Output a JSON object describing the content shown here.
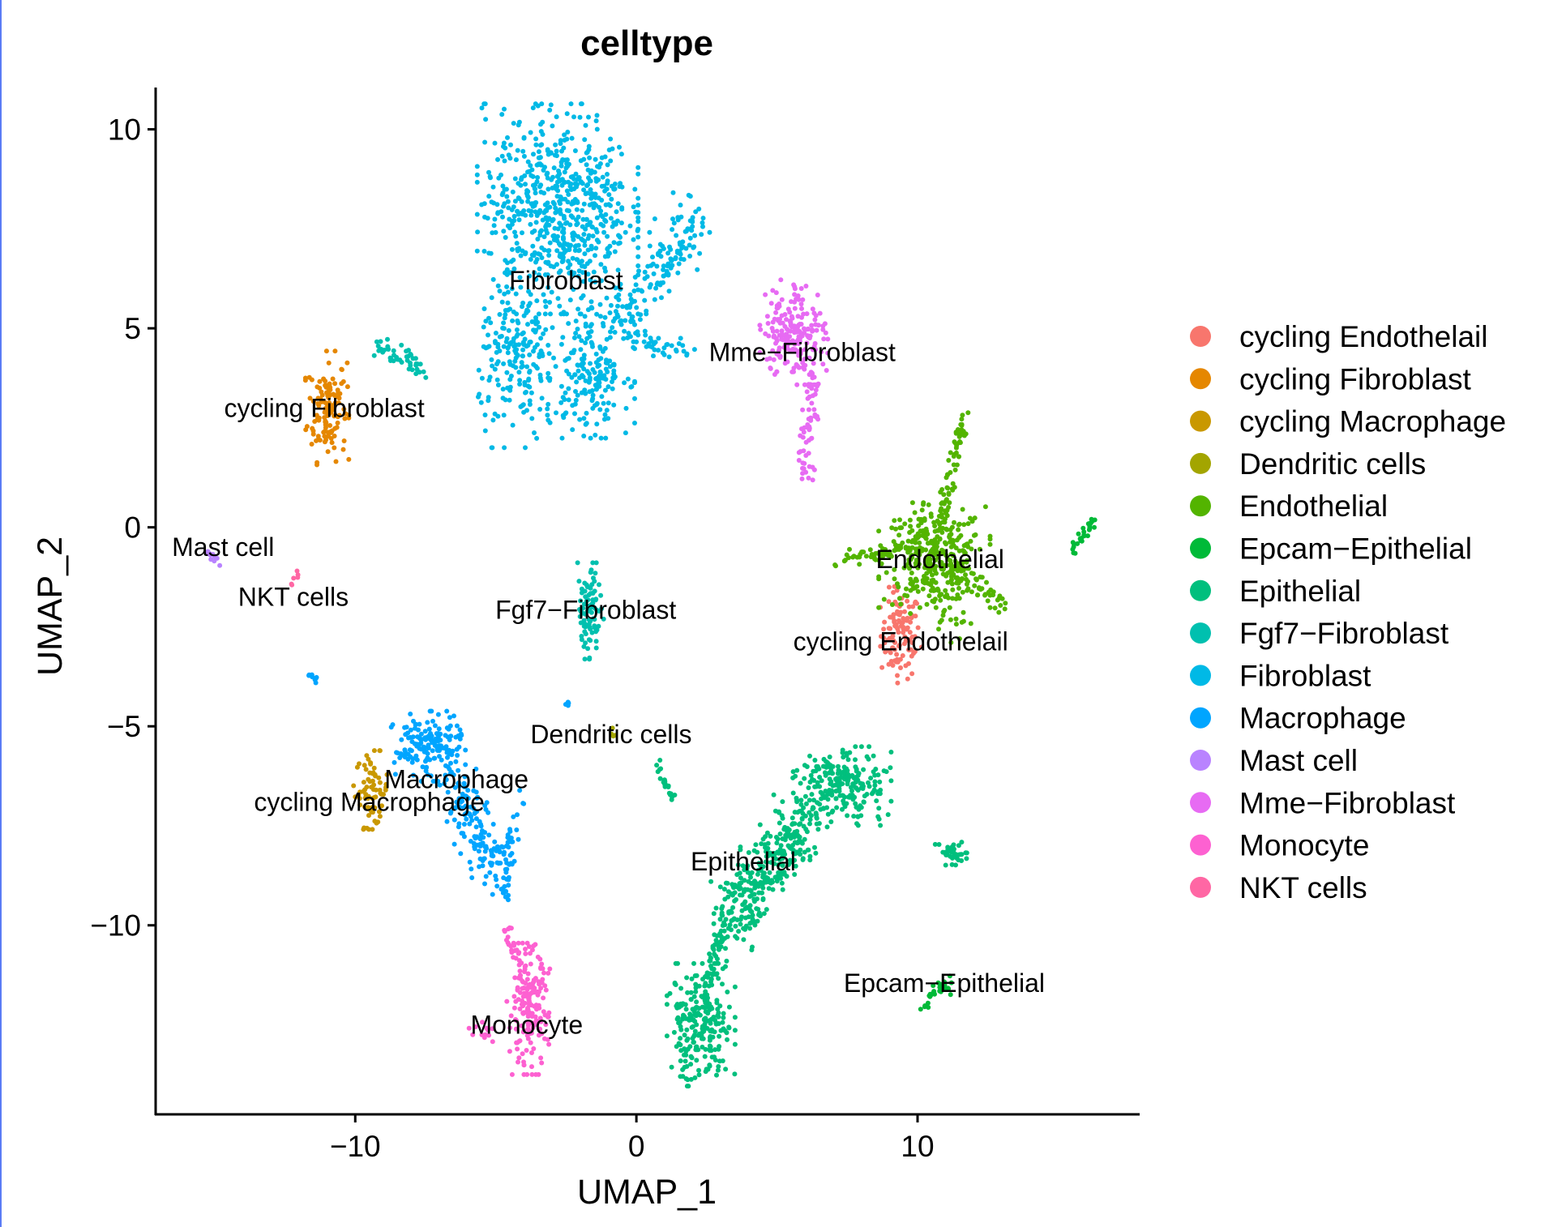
{
  "chart_data": {
    "type": "scatter",
    "title": "celltype",
    "xlabel": "UMAP_1",
    "ylabel": "UMAP_2",
    "xlim": [
      -17.1,
      17.9
    ],
    "ylim": [
      -14.75,
      11.05
    ],
    "xticks": [
      {
        "value": -10,
        "label": "−10"
      },
      {
        "value": 0,
        "label": "0"
      },
      {
        "value": 10,
        "label": "10"
      }
    ],
    "yticks": [
      {
        "value": 10,
        "label": "10"
      },
      {
        "value": 5,
        "label": "5"
      },
      {
        "value": 0,
        "label": "0"
      },
      {
        "value": -5,
        "label": "−5"
      },
      {
        "value": -10,
        "label": "−10"
      }
    ],
    "grid": false,
    "legend_placement": "right",
    "series": [
      {
        "name": "cycling Endothelail",
        "color": "#F8766D",
        "label_pos": [
          9.4,
          -2.87
        ],
        "clusters": [
          {
            "kind": "blob",
            "c": [
              9.4,
              -2.7
            ],
            "s": [
              0.35,
              0.55
            ],
            "n": 110
          }
        ]
      },
      {
        "name": "cycling Fibroblast",
        "color": "#E58700",
        "label_pos": [
          -11.1,
          3.0
        ],
        "clusters": [
          {
            "kind": "blob",
            "c": [
              -11.0,
              3.0
            ],
            "s": [
              0.35,
              0.65
            ],
            "n": 130
          }
        ]
      },
      {
        "name": "cycling Macrophage",
        "color": "#C99800",
        "label_pos": [
          -9.5,
          -6.9
        ],
        "clusters": [
          {
            "kind": "blob",
            "c": [
              -9.4,
              -6.6
            ],
            "s": [
              0.3,
              0.45
            ],
            "n": 70
          }
        ]
      },
      {
        "name": "Dendritic cells",
        "color": "#A3A500",
        "label_pos": [
          -0.9,
          -5.2
        ],
        "clusters": [
          {
            "kind": "blob",
            "c": [
              -0.9,
              -5.2
            ],
            "s": [
              0.08,
              0.08
            ],
            "n": 4
          }
        ]
      },
      {
        "name": "Endothelial",
        "color": "#53B400",
        "label_pos": [
          10.8,
          -0.8
        ],
        "clusters": [
          {
            "kind": "blob",
            "c": [
              10.6,
              -0.7
            ],
            "s": [
              0.9,
              0.6
            ],
            "n": 300
          },
          {
            "kind": "line",
            "a": [
              10.9,
              0.2
            ],
            "b": [
              11.6,
              2.8
            ],
            "w": 0.12,
            "n": 60
          },
          {
            "kind": "line",
            "a": [
              7.1,
              -0.85
            ],
            "b": [
              9.8,
              -0.5
            ],
            "w": 0.1,
            "n": 55
          },
          {
            "kind": "line",
            "a": [
              11.0,
              -1.0
            ],
            "b": [
              13.1,
              -2.0
            ],
            "w": 0.15,
            "n": 60
          },
          {
            "kind": "line",
            "a": [
              10.0,
              -1.3
            ],
            "b": [
              11.5,
              -2.5
            ],
            "w": 0.3,
            "n": 40
          }
        ]
      },
      {
        "name": "Epcam−Epithelial",
        "color": "#00BA38",
        "label_pos": [
          10.95,
          -11.45
        ],
        "clusters": [
          {
            "kind": "line",
            "a": [
              10.2,
              -12.0
            ],
            "b": [
              11.3,
              -11.3
            ],
            "w": 0.1,
            "n": 30
          },
          {
            "kind": "line",
            "a": [
              15.5,
              -0.6
            ],
            "b": [
              16.3,
              0.2
            ],
            "w": 0.06,
            "n": 30
          }
        ]
      },
      {
        "name": "Epithelial",
        "color": "#00BF7D",
        "label_pos": [
          3.8,
          -8.4
        ],
        "clusters": [
          {
            "kind": "blob",
            "c": [
              7.3,
              -6.5
            ],
            "s": [
              0.8,
              0.45
            ],
            "n": 220
          },
          {
            "kind": "line",
            "a": [
              6.2,
              -7.2
            ],
            "b": [
              3.2,
              -10.0
            ],
            "w": 0.45,
            "n": 330
          },
          {
            "kind": "line",
            "a": [
              3.0,
              -10.2
            ],
            "b": [
              2.5,
              -11.6
            ],
            "w": 0.15,
            "n": 50
          },
          {
            "kind": "blob",
            "c": [
              2.3,
              -12.5
            ],
            "s": [
              0.55,
              0.7
            ],
            "n": 230
          },
          {
            "kind": "blob",
            "c": [
              11.3,
              -8.2
            ],
            "s": [
              0.35,
              0.2
            ],
            "n": 40
          },
          {
            "kind": "line",
            "a": [
              0.7,
              -5.9
            ],
            "b": [
              1.3,
              -6.8
            ],
            "w": 0.06,
            "n": 20
          }
        ]
      },
      {
        "name": "Fgf7−Fibroblast",
        "color": "#00C0AF",
        "label_pos": [
          -1.8,
          -2.07
        ],
        "clusters": [
          {
            "kind": "blob",
            "c": [
              -1.65,
              -2.1
            ],
            "s": [
              0.22,
              0.55
            ],
            "n": 90
          },
          {
            "kind": "line",
            "a": [
              -9.3,
              4.6
            ],
            "b": [
              -7.6,
              3.9
            ],
            "w": 0.12,
            "n": 45
          }
        ]
      },
      {
        "name": "Fibroblast",
        "color": "#00B9E6",
        "label_pos": [
          -2.5,
          6.2
        ],
        "clusters": [
          {
            "kind": "blob",
            "c": [
              -2.8,
              8.0
            ],
            "s": [
              1.3,
              1.2
            ],
            "n": 650
          },
          {
            "kind": "blob",
            "c": [
              -4.2,
              4.2
            ],
            "s": [
              0.7,
              1.0
            ],
            "n": 200
          },
          {
            "kind": "blob",
            "c": [
              -1.6,
              4.0
            ],
            "s": [
              0.7,
              0.8
            ],
            "n": 200
          },
          {
            "kind": "line",
            "a": [
              -0.5,
              5.2
            ],
            "b": [
              2.2,
              7.8
            ],
            "w": 0.35,
            "n": 140
          },
          {
            "kind": "line",
            "a": [
              -0.5,
              4.8
            ],
            "b": [
              2.0,
              4.3
            ],
            "w": 0.15,
            "n": 40
          }
        ]
      },
      {
        "name": "Macrophage",
        "color": "#00A5FF",
        "label_pos": [
          -6.4,
          -6.33
        ],
        "clusters": [
          {
            "kind": "blob",
            "c": [
              -7.4,
              -5.5
            ],
            "s": [
              0.6,
              0.4
            ],
            "n": 160
          },
          {
            "kind": "line",
            "a": [
              -6.5,
              -6.2
            ],
            "b": [
              -4.9,
              -8.8
            ],
            "w": 0.35,
            "n": 150
          },
          {
            "kind": "line",
            "a": [
              -4.2,
              -6.8
            ],
            "b": [
              -4.7,
              -9.3
            ],
            "w": 0.12,
            "n": 40
          },
          {
            "kind": "line",
            "a": [
              -11.7,
              -3.6
            ],
            "b": [
              -11.4,
              -3.9
            ],
            "w": 0.05,
            "n": 8
          },
          {
            "kind": "blob",
            "c": [
              -2.5,
              -4.4
            ],
            "s": [
              0.05,
              0.08
            ],
            "n": 4
          }
        ]
      },
      {
        "name": "Mast cell",
        "color": "#B983FF",
        "label_pos": [
          -14.7,
          -0.5
        ],
        "clusters": [
          {
            "kind": "line",
            "a": [
              -15.4,
              -0.55
            ],
            "b": [
              -14.8,
              -0.95
            ],
            "w": 0.04,
            "n": 10
          }
        ]
      },
      {
        "name": "Mme−Fibroblast",
        "color": "#E76BF3",
        "label_pos": [
          5.9,
          4.4
        ],
        "clusters": [
          {
            "kind": "blob",
            "c": [
              5.6,
              4.9
            ],
            "s": [
              0.55,
              0.6
            ],
            "n": 200
          },
          {
            "kind": "line",
            "a": [
              6.3,
              3.8
            ],
            "b": [
              6.0,
              1.2
            ],
            "w": 0.15,
            "n": 60
          }
        ]
      },
      {
        "name": "Monocyte",
        "color": "#FD61D1",
        "label_pos": [
          -3.9,
          -12.5
        ],
        "clusters": [
          {
            "kind": "blob",
            "c": [
              -3.85,
              -12.1
            ],
            "s": [
              0.35,
              0.75
            ],
            "n": 180
          },
          {
            "kind": "line",
            "a": [
              -4.7,
              -10.0
            ],
            "b": [
              -4.1,
              -11.0
            ],
            "w": 0.1,
            "n": 20
          },
          {
            "kind": "blob",
            "c": [
              -5.4,
              -12.7
            ],
            "s": [
              0.25,
              0.15
            ],
            "n": 12
          }
        ]
      },
      {
        "name": "NKT cells",
        "color": "#FF67A4",
        "label_pos": [
          -12.2,
          -1.75
        ],
        "clusters": [
          {
            "kind": "line",
            "a": [
              -12.3,
              -1.45
            ],
            "b": [
              -12.0,
              -1.1
            ],
            "w": 0.04,
            "n": 6
          }
        ]
      }
    ]
  }
}
